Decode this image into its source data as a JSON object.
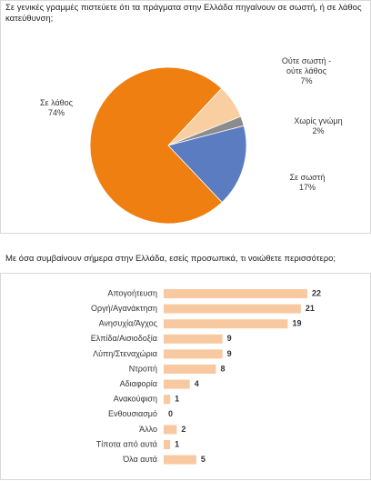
{
  "chart_data": [
    {
      "type": "pie",
      "title": "Σε γενικές γραμμές πιστεύετε ότι τα πράγματα στην Ελλάδα πηγαίνουν σε σωστή, ή σε λάθος κατεύθυνση;",
      "categories": [
        "Ούτε σωστή - ούτε λάθος",
        "Χωρίς γνώμη",
        "Σε σωστή",
        "Σε λάθος"
      ],
      "values": [
        7,
        2,
        17,
        74
      ],
      "value_labels": [
        "7%",
        "2%",
        "17%",
        "74%"
      ],
      "colors": [
        "#f9cfa2",
        "#8c8c8c",
        "#5b7cc0",
        "#ef7f10"
      ]
    },
    {
      "type": "hbar",
      "title": "Με όσα συμβαίνουν σήμερα στην Ελλάδα, εσείς προσωπικά, τι νοιώθετε περισσότερο;",
      "categories": [
        "Απογοήτευση",
        "Οργή/Αγανάκτηση",
        "Ανησυχία/Άγχος",
        "Ελπίδα/Αισιοδοξία",
        "Λύπη/Στεναχώρια",
        "Ντροπή",
        "Αδιαφορία",
        "Ανακούφιση",
        "Ενθουσιασμό",
        "Άλλο",
        "Τίποτα από αυτά",
        "Όλα αυτά"
      ],
      "values": [
        22,
        21,
        19,
        9,
        9,
        8,
        4,
        1,
        0,
        2,
        1,
        5
      ],
      "color": "#f8c9a0"
    }
  ]
}
